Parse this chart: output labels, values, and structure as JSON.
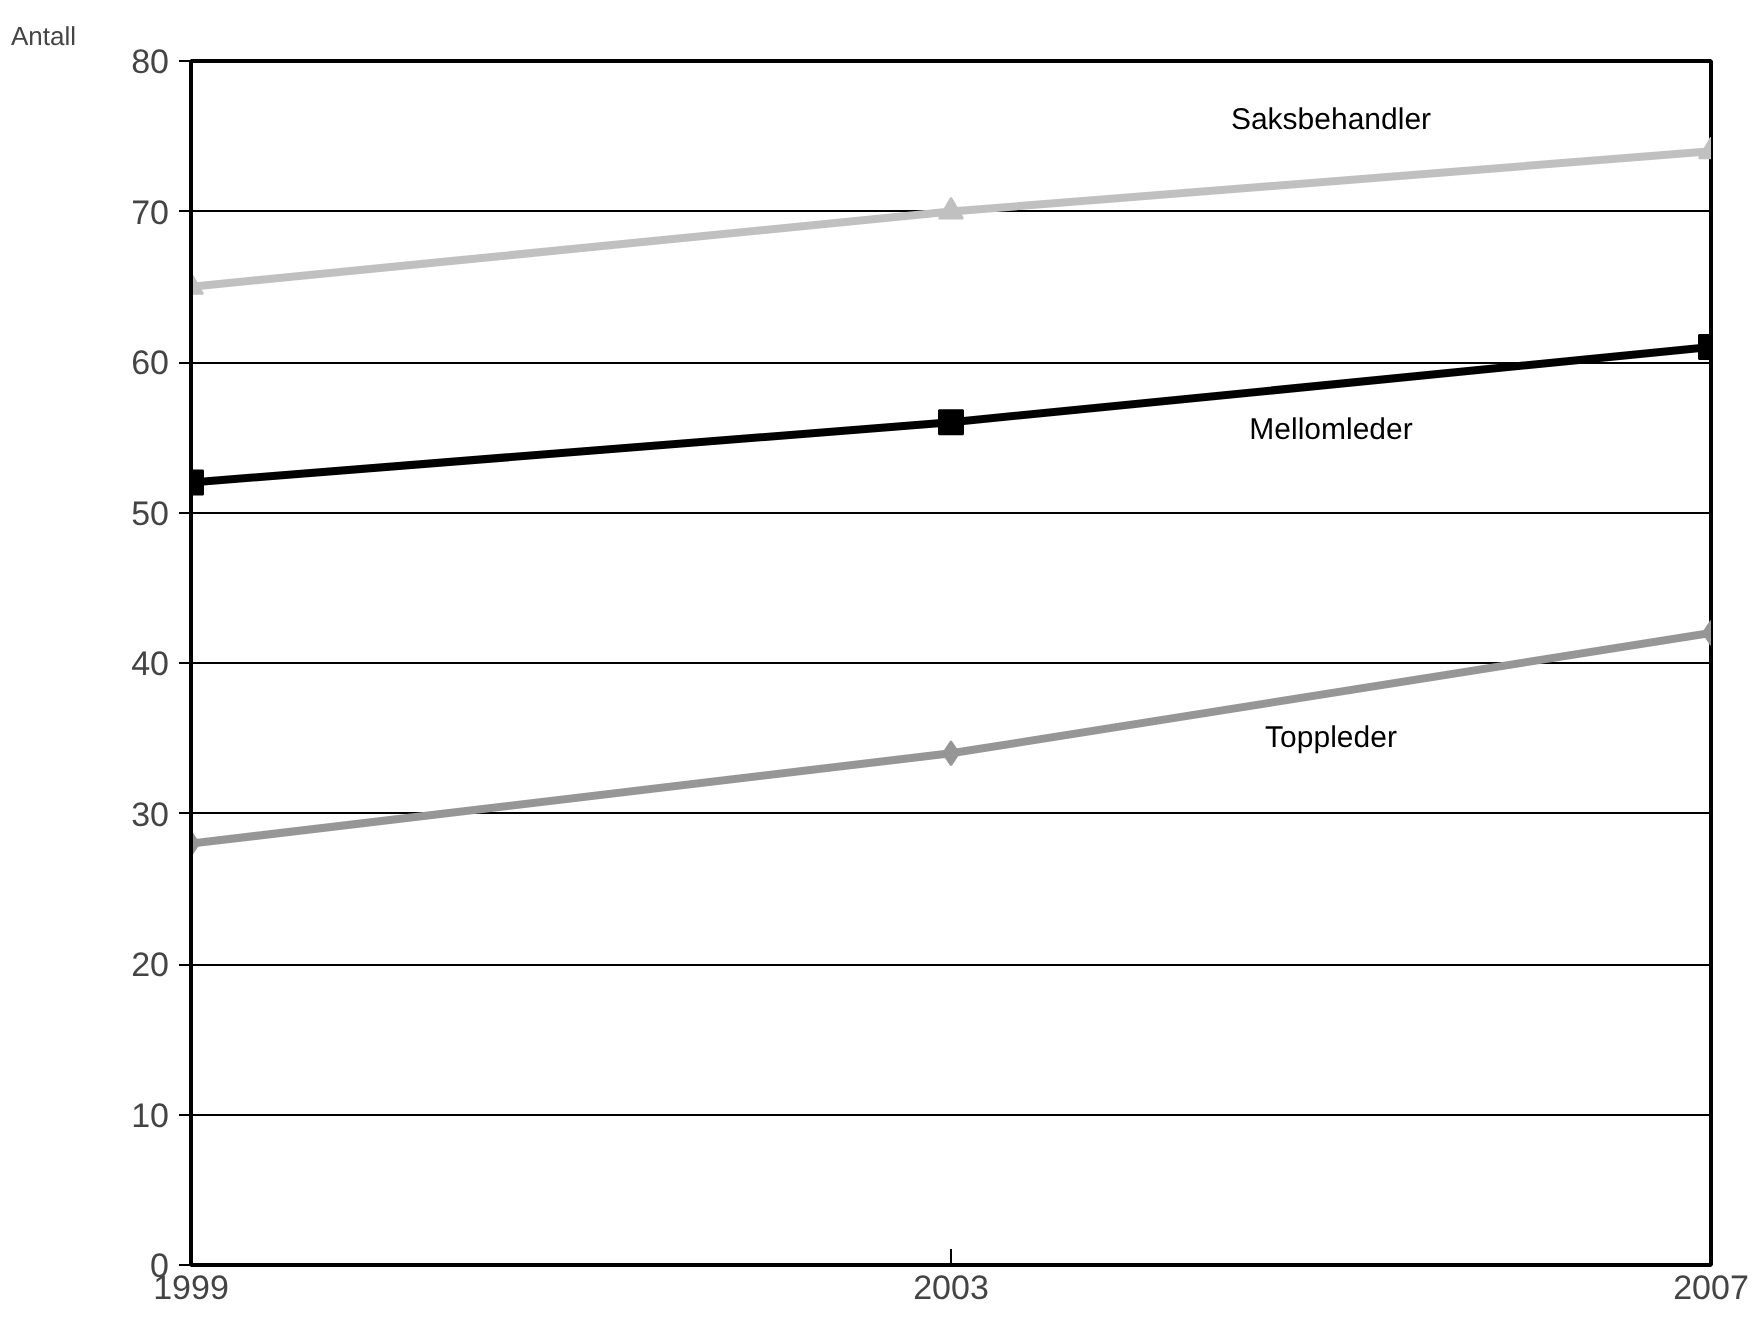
{
  "chart_data": {
    "type": "line",
    "ylabel": "Antall",
    "x": [
      1999,
      2003,
      2007
    ],
    "xlim": [
      1999,
      2007
    ],
    "xticks": [
      1999,
      2003,
      2007
    ],
    "ylim": [
      0,
      80
    ],
    "yticks": [
      0,
      10,
      20,
      30,
      40,
      50,
      60,
      70,
      80
    ],
    "grid": "y",
    "legend": false,
    "series": [
      {
        "name": "Saksbehandler",
        "color": "#c0c0c0",
        "marker": "triangle",
        "values": [
          65,
          70,
          74
        ]
      },
      {
        "name": "Mellomleder",
        "color": "#000000",
        "marker": "square",
        "values": [
          52,
          56,
          61
        ]
      },
      {
        "name": "Toppleder",
        "color": "#969696",
        "marker": "diamond",
        "values": [
          28,
          34,
          42
        ]
      }
    ]
  }
}
